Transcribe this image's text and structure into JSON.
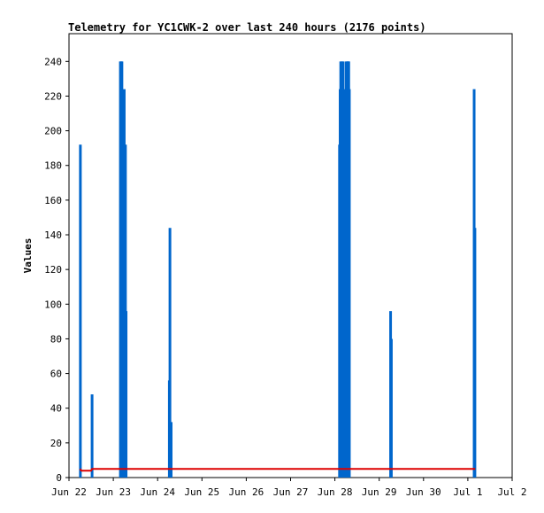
{
  "chart_data": {
    "type": "bar",
    "title": "Telemetry for YC1CWK-2 over last 240 hours (2176 points)",
    "xlabel": "",
    "ylabel": "Values",
    "xlim": [
      "2025-06-22T00:00",
      "2025-07-02T00:00"
    ],
    "ylim": [
      0,
      256
    ],
    "x_ticks": [
      {
        "at": "2025-06-22T00:00",
        "label": "Jun 22"
      },
      {
        "at": "2025-06-23T00:00",
        "label": "Jun 23"
      },
      {
        "at": "2025-06-24T00:00",
        "label": "Jun 24"
      },
      {
        "at": "2025-06-25T00:00",
        "label": "Jun 25"
      },
      {
        "at": "2025-06-26T00:00",
        "label": "Jun 26"
      },
      {
        "at": "2025-06-27T00:00",
        "label": "Jun 27"
      },
      {
        "at": "2025-06-28T00:00",
        "label": "Jun 28"
      },
      {
        "at": "2025-06-29T00:00",
        "label": "Jun 29"
      },
      {
        "at": "2025-06-30T00:00",
        "label": "Jun 30"
      },
      {
        "at": "2025-07-01T00:00",
        "label": "Jul 1"
      },
      {
        "at": "2025-07-02T00:00",
        "label": "Jul 2"
      }
    ],
    "y_ticks": [
      0,
      20,
      40,
      60,
      80,
      100,
      120,
      140,
      160,
      180,
      200,
      220,
      240
    ],
    "grid": false,
    "colors": {
      "impulses": "#0066cc",
      "baseline": "#dd0000",
      "axes": "#000000"
    },
    "series": [
      {
        "style": "impulses",
        "points": [
          {
            "x": "2025-06-22T06:10",
            "y": 192
          },
          {
            "x": "2025-06-22T12:30",
            "y": 48
          },
          {
            "x": "2025-06-23T03:50",
            "y": 240
          },
          {
            "x": "2025-06-23T04:15",
            "y": 240
          },
          {
            "x": "2025-06-23T04:40",
            "y": 240
          },
          {
            "x": "2025-06-23T05:00",
            "y": 80
          },
          {
            "x": "2025-06-23T05:15",
            "y": 112
          },
          {
            "x": "2025-06-23T05:35",
            "y": 144
          },
          {
            "x": "2025-06-23T05:55",
            "y": 224
          },
          {
            "x": "2025-06-23T06:15",
            "y": 176
          },
          {
            "x": "2025-06-23T06:35",
            "y": 192
          },
          {
            "x": "2025-06-23T06:55",
            "y": 96
          },
          {
            "x": "2025-06-24T06:20",
            "y": 56
          },
          {
            "x": "2025-06-24T06:40",
            "y": 144
          },
          {
            "x": "2025-06-24T07:20",
            "y": 32
          },
          {
            "x": "2025-06-28T02:30",
            "y": 192
          },
          {
            "x": "2025-06-28T02:50",
            "y": 224
          },
          {
            "x": "2025-06-28T03:10",
            "y": 240
          },
          {
            "x": "2025-06-28T03:30",
            "y": 144
          },
          {
            "x": "2025-06-28T03:50",
            "y": 240
          },
          {
            "x": "2025-06-28T04:10",
            "y": 32
          },
          {
            "x": "2025-06-28T04:30",
            "y": 240
          },
          {
            "x": "2025-06-28T04:50",
            "y": 224
          },
          {
            "x": "2025-06-28T05:10",
            "y": 16
          },
          {
            "x": "2025-06-28T05:30",
            "y": 28
          },
          {
            "x": "2025-06-28T05:50",
            "y": 208
          },
          {
            "x": "2025-06-28T06:10",
            "y": 240
          },
          {
            "x": "2025-06-28T06:30",
            "y": 160
          },
          {
            "x": "2025-06-28T06:50",
            "y": 240
          },
          {
            "x": "2025-06-28T07:10",
            "y": 240
          },
          {
            "x": "2025-06-28T07:30",
            "y": 240
          },
          {
            "x": "2025-06-28T07:50",
            "y": 224
          },
          {
            "x": "2025-06-29T06:10",
            "y": 96
          },
          {
            "x": "2025-06-29T06:35",
            "y": 80
          },
          {
            "x": "2025-07-01T03:25",
            "y": 224
          },
          {
            "x": "2025-07-01T03:50",
            "y": 144
          }
        ]
      },
      {
        "style": "line",
        "points": [
          {
            "x": "2025-06-22T06:00",
            "y": 5
          },
          {
            "x": "2025-06-22T06:40",
            "y": 4
          },
          {
            "x": "2025-06-22T12:00",
            "y": 4
          },
          {
            "x": "2025-06-22T12:30",
            "y": 5
          },
          {
            "x": "2025-07-01T04:00",
            "y": 5
          }
        ]
      }
    ]
  }
}
